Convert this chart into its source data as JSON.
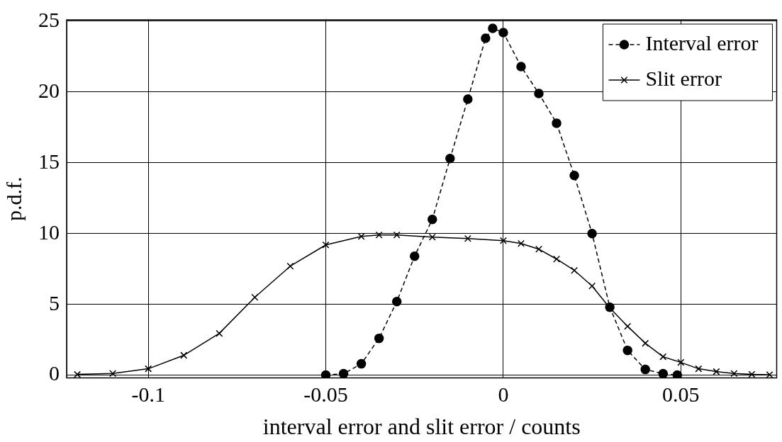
{
  "chart_data": {
    "type": "line",
    "xlabel": "interval error and slit error / counts",
    "ylabel": "p.d.f.",
    "xlim": [
      -0.123,
      0.077
    ],
    "xticks": [
      -0.1,
      -0.05,
      0,
      0.05
    ],
    "ylim": [
      -0.2,
      25.1
    ],
    "yticks": [
      0,
      5,
      10,
      15,
      20,
      25
    ],
    "grid": true,
    "legend": "top right",
    "series": [
      {
        "name": "Interval error",
        "color": "#000000",
        "marker": "circle",
        "line_style": "dashed",
        "x": [
          -0.05,
          -0.045,
          -0.04,
          -0.035,
          -0.03,
          -0.025,
          -0.02,
          -0.015,
          -0.01,
          -0.005,
          -0.003,
          0,
          0.005,
          0.01,
          0.015,
          0.02,
          0.025,
          0.03,
          0.035,
          0.04,
          0.045,
          0.049
        ],
        "values": [
          0,
          0.1,
          0.8,
          2.6,
          5.2,
          8.4,
          11,
          15.3,
          19.5,
          23.8,
          24.5,
          24.2,
          21.8,
          19.9,
          17.8,
          14.1,
          10,
          4.8,
          1.75,
          0.4,
          0.1,
          0
        ]
      },
      {
        "name": "Slit error",
        "color": "#000000",
        "marker": "cross",
        "line_style": "solid",
        "x": [
          -0.12,
          -0.11,
          -0.1,
          -0.09,
          -0.08,
          -0.07,
          -0.06,
          -0.05,
          -0.04,
          -0.035,
          -0.03,
          -0.02,
          -0.01,
          0,
          0.005,
          0.01,
          0.015,
          0.02,
          0.025,
          0.03,
          0.035,
          0.04,
          0.045,
          0.05,
          0.055,
          0.06,
          0.065,
          0.07,
          0.075
        ],
        "values": [
          0.05,
          0.12,
          0.45,
          1.4,
          2.95,
          5.5,
          7.7,
          9.2,
          9.8,
          9.9,
          9.9,
          9.75,
          9.65,
          9.5,
          9.3,
          8.9,
          8.2,
          7.4,
          6.3,
          4.75,
          3.45,
          2.25,
          1.3,
          0.9,
          0.45,
          0.25,
          0.12,
          0.06,
          0.03
        ]
      }
    ]
  }
}
